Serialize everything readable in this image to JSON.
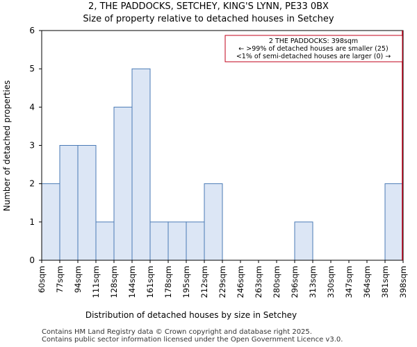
{
  "chart_data": {
    "type": "bar",
    "title": "2, THE PADDOCKS, SETCHEY, KING'S LYNN, PE33 0BX",
    "subtitle": "Size of property relative to detached houses in Setchey",
    "xlabel": "Distribution of detached houses by size in Setchey",
    "ylabel": "Number of detached properties",
    "tick_labels": [
      "60sqm",
      "77sqm",
      "94sqm",
      "111sqm",
      "128sqm",
      "144sqm",
      "161sqm",
      "178sqm",
      "195sqm",
      "212sqm",
      "229sqm",
      "246sqm",
      "263sqm",
      "280sqm",
      "296sqm",
      "313sqm",
      "330sqm",
      "347sqm",
      "364sqm",
      "381sqm",
      "398sqm"
    ],
    "values": [
      2,
      3,
      3,
      1,
      4,
      5,
      1,
      1,
      1,
      2,
      0,
      0,
      0,
      0,
      1,
      0,
      0,
      0,
      0,
      2
    ],
    "ylim": [
      0,
      6
    ],
    "yticks": [
      0,
      1,
      2,
      3,
      4,
      5,
      6
    ],
    "bar_color": "#dce6f5",
    "bar_edge_color": "#4a7ab5",
    "marker": {
      "value_label": "398sqm",
      "color": "#c0001a"
    },
    "annotation": {
      "line1": "2 THE PADDOCKS: 398sqm",
      "line2": "← >99% of detached houses are smaller (25)",
      "line3": "<1% of semi-detached houses are larger (0) →",
      "border_color": "#c0001a"
    }
  },
  "footer": {
    "line1": "Contains HM Land Registry data © Crown copyright and database right 2025.",
    "line2": "Contains public sector information licensed under the Open Government Licence v3.0."
  }
}
